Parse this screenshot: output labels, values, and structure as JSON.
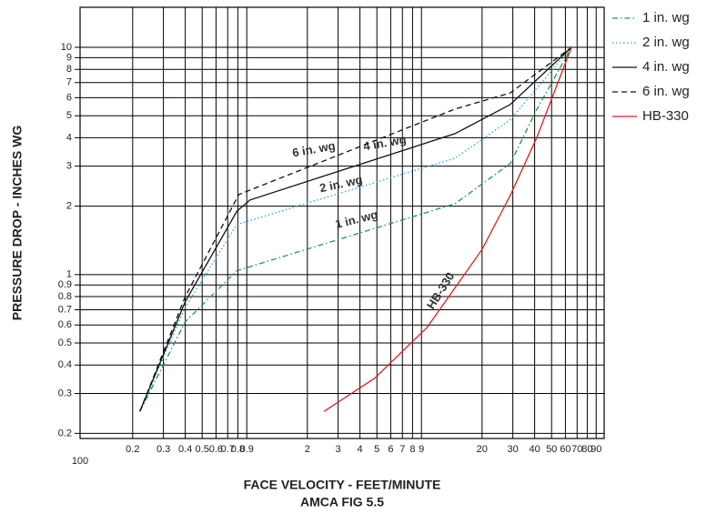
{
  "chart_data": {
    "type": "line",
    "log_x": true,
    "log_y": true,
    "grid": true,
    "legend": "right",
    "x_label": "FACE VELOCITY - FEET/MINUTE",
    "subtitle": "AMCA FIG 5.5",
    "y_label": "PRESSURE DROP - INCHES WG",
    "x_origin_label": "100",
    "xlim": [
      0.1,
      100
    ],
    "ylim": [
      0.19,
      15
    ],
    "xticks": [
      0.2,
      0.3,
      0.4,
      0.5,
      0.6,
      0.7,
      0.8,
      0.9,
      2,
      3,
      4,
      5,
      6,
      7,
      8,
      9,
      20,
      30,
      40,
      50,
      60,
      70,
      80,
      90
    ],
    "yticks": [
      0.2,
      0.3,
      0.4,
      0.5,
      0.6,
      0.7,
      0.8,
      0.9,
      1,
      2,
      3,
      4,
      5,
      6,
      7,
      8,
      9,
      10
    ],
    "series": [
      {
        "name": "1 in. wg",
        "color": "#1a9a4a",
        "dash": "dash-dot",
        "label": "1 in. wg",
        "x": [
          0.22,
          0.4,
          0.79,
          14,
          29,
          41,
          65
        ],
        "values": [
          0.25,
          0.62,
          1.04,
          2.05,
          3.08,
          5.3,
          10
        ]
      },
      {
        "name": "2 in. wg",
        "color": "#22a8d8",
        "dash": "dot",
        "label": "2 in. wg",
        "x": [
          0.22,
          0.4,
          0.79,
          14,
          29,
          65
        ],
        "values": [
          0.25,
          0.72,
          1.66,
          3.25,
          4.8,
          10
        ]
      },
      {
        "name": "4 in. wg",
        "color": "#111111",
        "dash": "solid",
        "label": "4 in. wg",
        "x": [
          0.22,
          0.4,
          0.79,
          0.94,
          14,
          29,
          65
        ],
        "values": [
          0.25,
          0.76,
          1.9,
          2.13,
          4.17,
          5.6,
          10
        ]
      },
      {
        "name": "6 in. wg",
        "color": "#111111",
        "dash": "dash",
        "label": "6 in. wg",
        "x": [
          0.22,
          0.4,
          0.81,
          14,
          29,
          65
        ],
        "values": [
          0.25,
          0.8,
          2.25,
          5.35,
          6.3,
          10
        ]
      },
      {
        "name": "HB-330",
        "color": "#e02020",
        "dash": "solid",
        "label": "HB-330",
        "x": [
          2.49,
          4.86,
          9.7,
          20,
          29,
          41,
          65
        ],
        "values": [
          0.25,
          0.35,
          0.586,
          1.29,
          2.23,
          3.98,
          10
        ]
      }
    ]
  }
}
